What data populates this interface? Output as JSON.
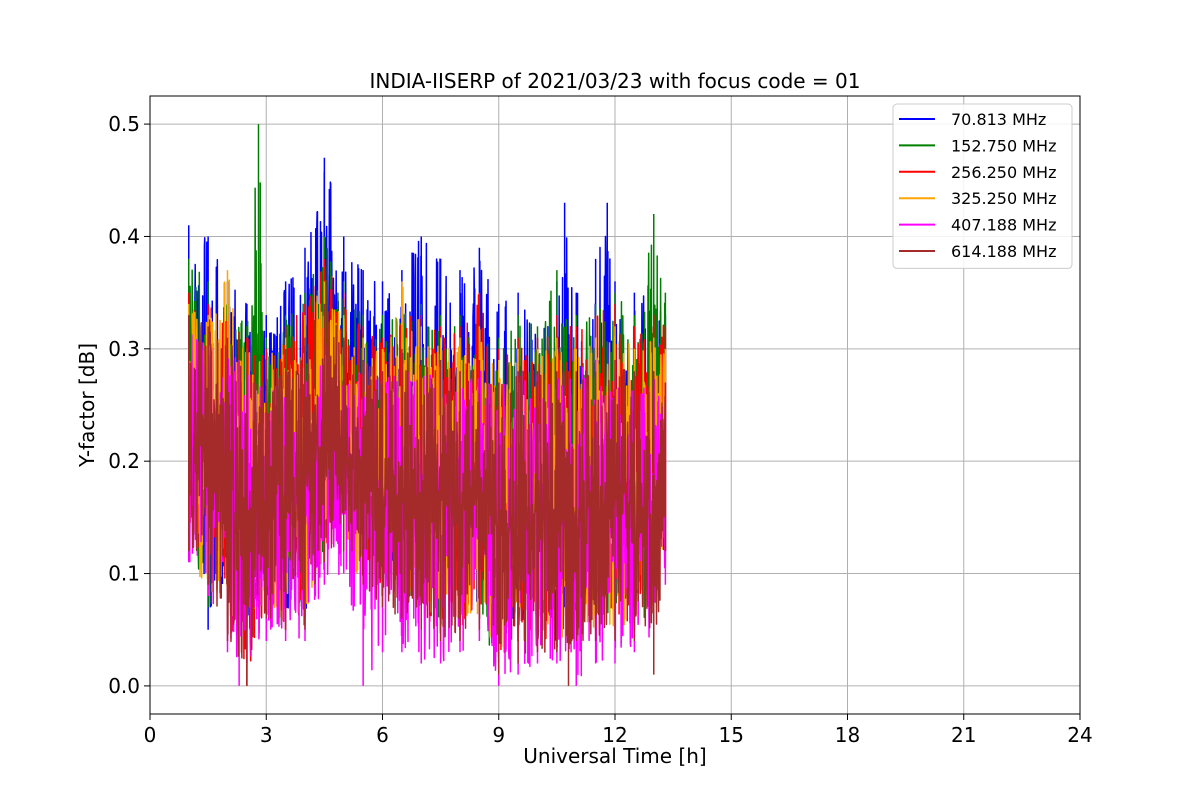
{
  "chart_data": {
    "type": "line",
    "title": "INDIA-IISERP of 2021/03/23 with focus code = 01",
    "xlabel": "Universal Time [h]",
    "ylabel": "Y-factor [dB]",
    "xlim": [
      0,
      24
    ],
    "ylim": [
      -0.025,
      0.525
    ],
    "xticks": [
      0,
      3,
      6,
      9,
      12,
      15,
      18,
      21,
      24
    ],
    "xtick_labels": [
      "0",
      "3",
      "6",
      "9",
      "12",
      "15",
      "18",
      "21",
      "24"
    ],
    "yticks": [
      0.0,
      0.1,
      0.2,
      0.3,
      0.4,
      0.5
    ],
    "ytick_labels": [
      "0.0",
      "0.1",
      "0.2",
      "0.3",
      "0.4",
      "0.5"
    ],
    "grid": true,
    "legend_position": "top-right",
    "x_range_of_data": [
      1.0,
      13.3
    ],
    "series": [
      {
        "name": " 70.813 MHz",
        "color": "#0000ff",
        "x": [
          1.0,
          1.5,
          2.0,
          2.5,
          3.0,
          3.5,
          4.0,
          4.5,
          5.0,
          5.5,
          6.0,
          6.5,
          7.0,
          7.5,
          8.0,
          8.5,
          9.0,
          9.5,
          10.0,
          10.5,
          10.7,
          11.0,
          11.5,
          11.8,
          12.0,
          12.5,
          13.0,
          13.3
        ],
        "upper": [
          0.41,
          0.4,
          0.36,
          0.34,
          0.33,
          0.36,
          0.39,
          0.47,
          0.4,
          0.37,
          0.36,
          0.37,
          0.4,
          0.38,
          0.37,
          0.39,
          0.34,
          0.35,
          0.31,
          0.36,
          0.43,
          0.35,
          0.38,
          0.43,
          0.36,
          0.35,
          0.35,
          0.33
        ],
        "lower": [
          0.13,
          0.05,
          0.09,
          0.06,
          0.08,
          0.07,
          0.06,
          0.13,
          0.14,
          0.11,
          0.1,
          0.09,
          0.08,
          0.07,
          0.06,
          0.07,
          0.03,
          0.05,
          0.05,
          0.04,
          0.07,
          0.08,
          0.06,
          0.07,
          0.09,
          0.08,
          0.07,
          0.12
        ]
      },
      {
        "name": "152.750 MHz",
        "color": "#008000",
        "x": [
          1.0,
          1.5,
          2.0,
          2.5,
          2.8,
          3.0,
          3.5,
          4.0,
          4.5,
          5.0,
          5.5,
          6.0,
          6.5,
          7.0,
          7.5,
          8.0,
          8.5,
          9.0,
          9.5,
          10.0,
          10.5,
          11.0,
          11.5,
          12.0,
          12.5,
          13.0,
          13.3
        ],
        "upper": [
          0.38,
          0.36,
          0.34,
          0.32,
          0.5,
          0.31,
          0.33,
          0.35,
          0.4,
          0.36,
          0.33,
          0.33,
          0.35,
          0.34,
          0.33,
          0.33,
          0.34,
          0.31,
          0.33,
          0.32,
          0.37,
          0.33,
          0.34,
          0.35,
          0.33,
          0.42,
          0.35
        ],
        "lower": [
          0.13,
          0.07,
          0.06,
          0.05,
          0.07,
          0.06,
          0.05,
          0.07,
          0.12,
          0.13,
          0.1,
          0.08,
          0.07,
          0.06,
          0.05,
          0.05,
          0.06,
          0.01,
          0.04,
          0.05,
          0.05,
          0.05,
          0.06,
          0.06,
          0.05,
          0.06,
          0.12
        ]
      },
      {
        "name": "256.250 MHz",
        "color": "#ff0000",
        "x": [
          1.0,
          1.5,
          2.0,
          2.5,
          3.0,
          3.5,
          4.0,
          4.5,
          5.0,
          5.5,
          6.0,
          6.5,
          7.0,
          7.5,
          8.0,
          8.5,
          9.0,
          9.5,
          10.0,
          10.5,
          11.0,
          11.5,
          12.0,
          12.5,
          13.0,
          13.3
        ],
        "upper": [
          0.35,
          0.34,
          0.33,
          0.31,
          0.3,
          0.32,
          0.34,
          0.38,
          0.35,
          0.32,
          0.31,
          0.33,
          0.33,
          0.32,
          0.32,
          0.35,
          0.3,
          0.31,
          0.31,
          0.33,
          0.32,
          0.33,
          0.34,
          0.32,
          0.33,
          0.32
        ],
        "lower": [
          0.12,
          0.09,
          0.05,
          0.0,
          0.07,
          0.05,
          0.06,
          0.12,
          0.13,
          0.1,
          0.08,
          0.07,
          0.06,
          0.05,
          0.05,
          0.06,
          0.02,
          0.04,
          0.04,
          0.04,
          0.05,
          0.05,
          0.05,
          0.05,
          0.06,
          0.12
        ]
      },
      {
        "name": "325.250 MHz",
        "color": "#ffa500",
        "x": [
          1.0,
          1.5,
          2.0,
          2.5,
          3.0,
          3.5,
          4.0,
          4.5,
          5.0,
          5.5,
          6.0,
          6.5,
          7.0,
          7.5,
          8.0,
          8.5,
          9.0,
          9.5,
          10.0,
          10.5,
          11.0,
          11.5,
          12.0,
          12.5,
          13.0,
          13.3
        ],
        "upper": [
          0.34,
          0.33,
          0.37,
          0.3,
          0.29,
          0.31,
          0.33,
          0.36,
          0.33,
          0.31,
          0.3,
          0.36,
          0.32,
          0.31,
          0.31,
          0.32,
          0.29,
          0.3,
          0.3,
          0.31,
          0.3,
          0.31,
          0.32,
          0.3,
          0.31,
          0.3
        ],
        "lower": [
          0.12,
          0.08,
          0.06,
          0.06,
          0.07,
          0.05,
          0.06,
          0.11,
          0.12,
          0.09,
          0.08,
          0.07,
          0.06,
          0.05,
          0.05,
          0.06,
          0.02,
          0.04,
          0.04,
          0.04,
          0.05,
          0.05,
          0.05,
          0.05,
          0.06,
          0.11
        ]
      },
      {
        "name": "407.188 MHz",
        "color": "#ff00ff",
        "x": [
          1.0,
          1.5,
          2.0,
          2.3,
          2.5,
          3.0,
          3.5,
          4.0,
          4.5,
          5.0,
          5.5,
          6.0,
          6.5,
          7.0,
          7.5,
          8.0,
          8.5,
          9.0,
          9.5,
          10.0,
          10.5,
          11.0,
          11.5,
          12.0,
          12.5,
          13.0,
          13.3
        ],
        "upper": [
          0.32,
          0.31,
          0.3,
          0.29,
          0.28,
          0.27,
          0.28,
          0.29,
          0.31,
          0.3,
          0.28,
          0.28,
          0.29,
          0.29,
          0.28,
          0.28,
          0.29,
          0.27,
          0.28,
          0.28,
          0.28,
          0.28,
          0.29,
          0.28,
          0.27,
          0.28,
          0.27
        ],
        "lower": [
          0.11,
          0.08,
          0.03,
          0.0,
          0.02,
          0.04,
          0.04,
          0.04,
          0.09,
          0.1,
          0.0,
          0.03,
          0.03,
          0.02,
          0.02,
          0.03,
          0.04,
          0.0,
          0.01,
          0.02,
          0.02,
          0.0,
          0.02,
          0.02,
          0.03,
          0.04,
          0.09
        ]
      },
      {
        "name": "614.188 MHz",
        "color": "#a52a2a",
        "x": [
          1.0,
          1.5,
          2.0,
          2.5,
          3.0,
          3.5,
          4.0,
          4.5,
          5.0,
          5.5,
          6.0,
          6.5,
          7.0,
          7.5,
          8.0,
          8.5,
          9.0,
          9.5,
          10.0,
          10.5,
          10.8,
          11.0,
          11.5,
          12.0,
          12.5,
          13.0,
          13.3
        ],
        "upper": [
          0.33,
          0.32,
          0.31,
          0.3,
          0.29,
          0.3,
          0.31,
          0.34,
          0.31,
          0.29,
          0.28,
          0.3,
          0.29,
          0.29,
          0.28,
          0.29,
          0.27,
          0.28,
          0.28,
          0.28,
          0.28,
          0.28,
          0.28,
          0.29,
          0.28,
          0.28,
          0.27
        ],
        "lower": [
          0.12,
          0.09,
          0.04,
          0.0,
          0.06,
          0.05,
          0.05,
          0.11,
          0.12,
          0.09,
          0.07,
          0.06,
          0.05,
          0.04,
          0.04,
          0.05,
          0.01,
          0.02,
          0.03,
          0.03,
          0.0,
          0.04,
          0.04,
          0.04,
          0.04,
          0.01,
          0.12
        ]
      }
    ]
  }
}
